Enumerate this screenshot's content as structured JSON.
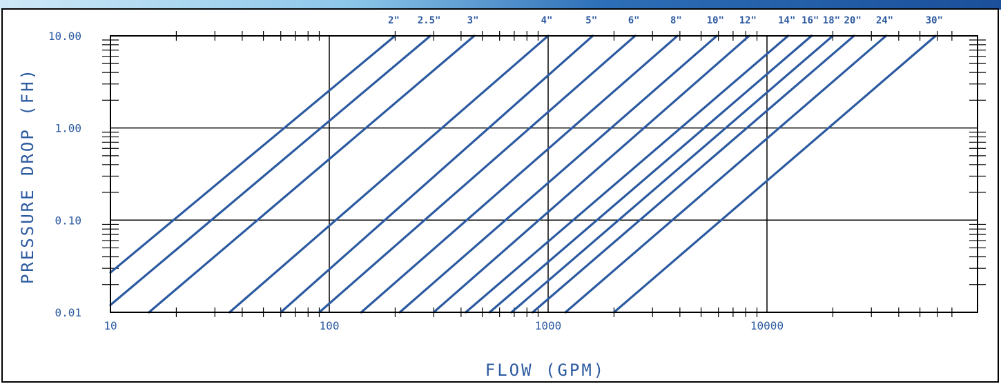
{
  "colors": {
    "line": "#2c5aa0",
    "frame": "#000000",
    "banner_dark": "#1f5aa6",
    "banner_light": "#9fd1ee"
  },
  "chart_data": {
    "type": "line",
    "title": "",
    "xlabel": "FLOW (GPM)",
    "ylabel": "PRESSURE DROP (FH)",
    "x_scale": "log",
    "y_scale": "log",
    "xlim": [
      10,
      70000
    ],
    "ylim": [
      0.01,
      10
    ],
    "x_tick_labels": [
      "10",
      "100",
      "1000",
      "10000"
    ],
    "y_tick_labels": [
      "10.00",
      "1.00",
      "0.10",
      "0.01"
    ],
    "grid": true,
    "legend": "labels at top of each line",
    "series": [
      {
        "name": "2\"",
        "x": [
          10,
          200
        ],
        "y": [
          0.027,
          10
        ]
      },
      {
        "name": "2.5\"",
        "x": [
          10,
          290
        ],
        "y": [
          0.012,
          10
        ]
      },
      {
        "name": "3\"",
        "x": [
          15,
          460
        ],
        "y": [
          0.01,
          10
        ]
      },
      {
        "name": "4\"",
        "x": [
          35,
          1000
        ],
        "y": [
          0.01,
          10
        ]
      },
      {
        "name": "5\"",
        "x": [
          60,
          1600
        ],
        "y": [
          0.01,
          10
        ]
      },
      {
        "name": "6\"",
        "x": [
          90,
          2500
        ],
        "y": [
          0.01,
          10
        ]
      },
      {
        "name": "8\"",
        "x": [
          140,
          3900
        ],
        "y": [
          0.01,
          10
        ]
      },
      {
        "name": "10\"",
        "x": [
          210,
          5900
        ],
        "y": [
          0.01,
          10
        ]
      },
      {
        "name": "12\"",
        "x": [
          300,
          8300
        ],
        "y": [
          0.01,
          10
        ]
      },
      {
        "name": "14\"",
        "x": [
          420,
          12500
        ],
        "y": [
          0.01,
          10
        ]
      },
      {
        "name": "16\"",
        "x": [
          540,
          16000
        ],
        "y": [
          0.01,
          10
        ]
      },
      {
        "name": "18\"",
        "x": [
          680,
          20000
        ],
        "y": [
          0.01,
          10
        ]
      },
      {
        "name": "20\"",
        "x": [
          850,
          25000
        ],
        "y": [
          0.01,
          10
        ]
      },
      {
        "name": "24\"",
        "x": [
          1200,
          35000
        ],
        "y": [
          0.01,
          10
        ]
      },
      {
        "name": "30\"",
        "x": [
          2000,
          59000
        ],
        "y": [
          0.01,
          10
        ]
      }
    ]
  }
}
